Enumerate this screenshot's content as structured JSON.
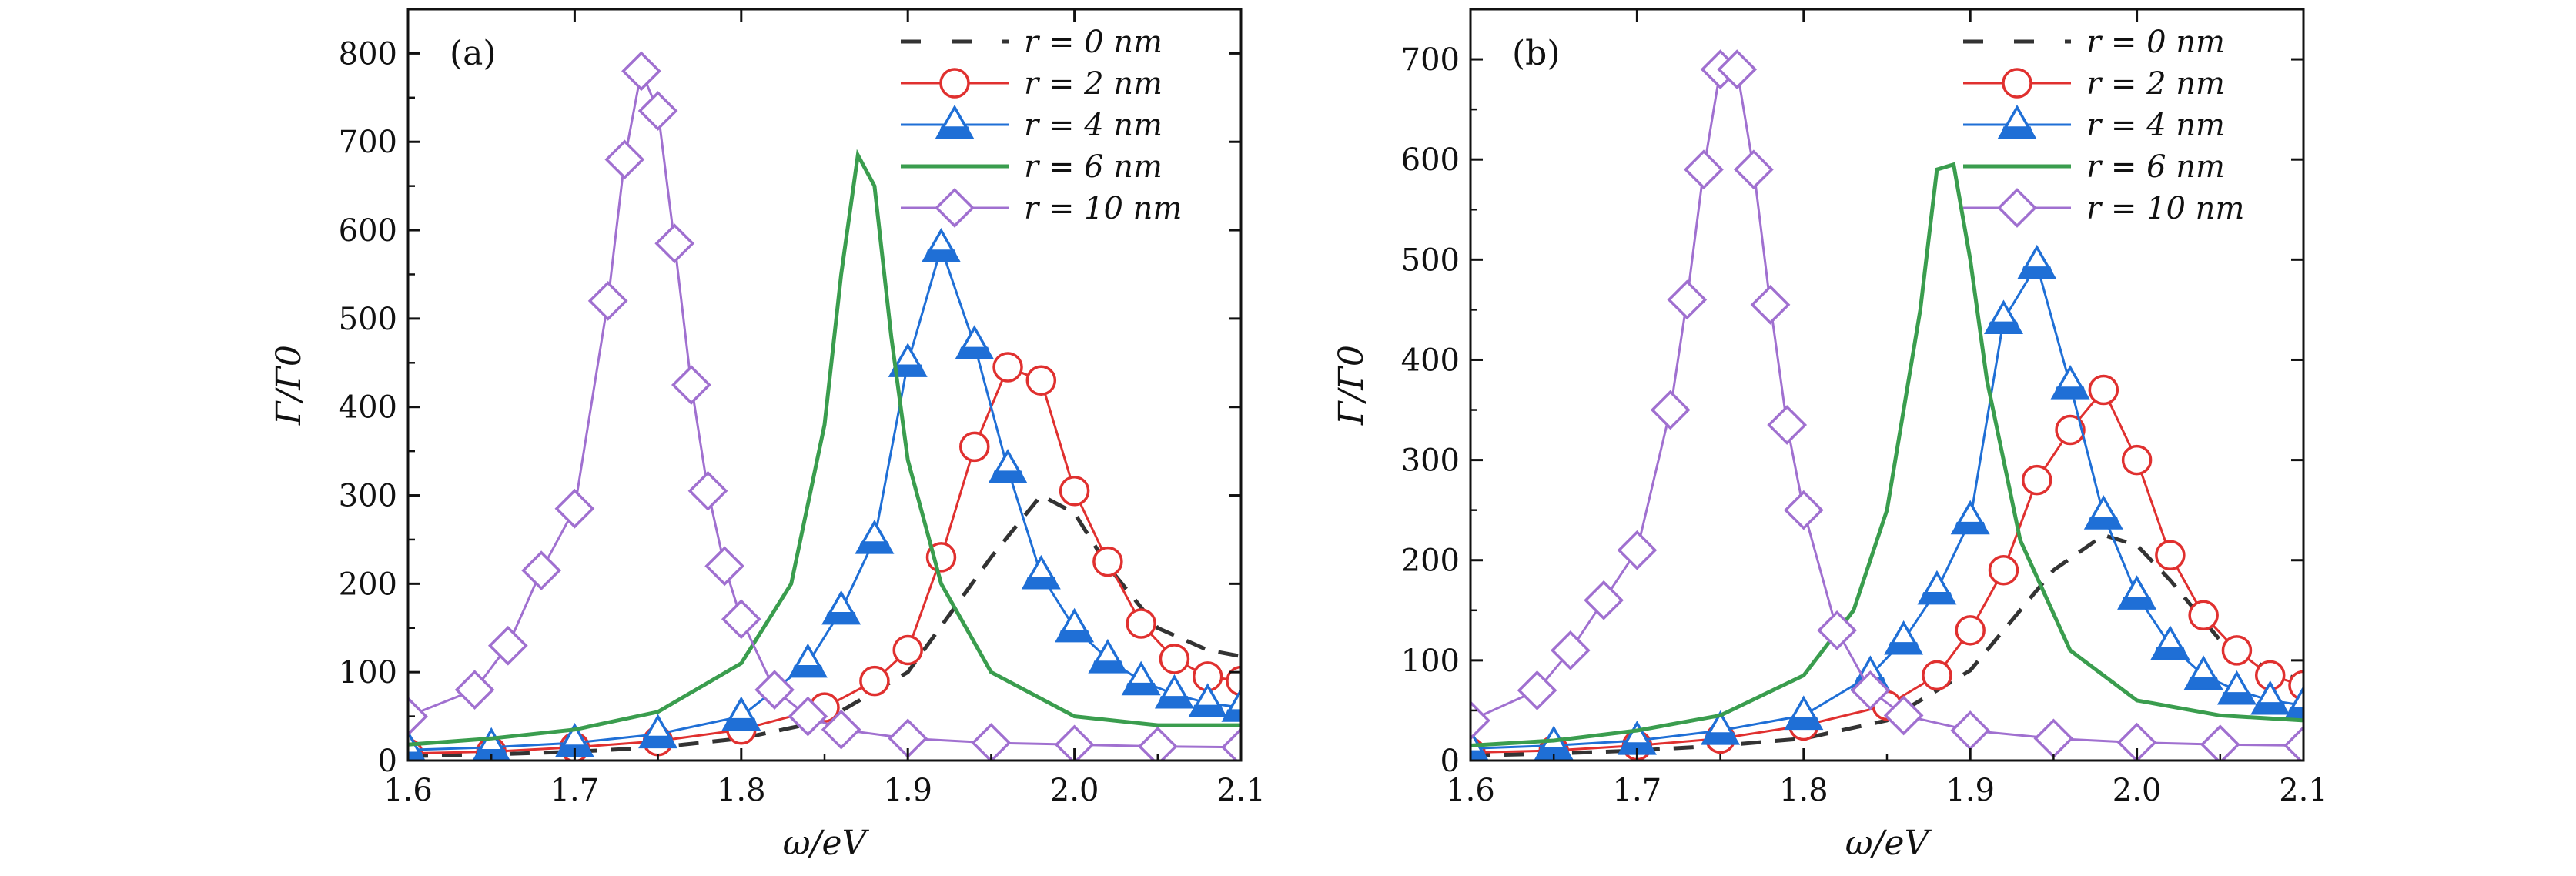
{
  "chart_data": [
    {
      "type": "line",
      "panel_label": "(a)",
      "xlabel": "ω/eV",
      "ylabel": "Γ/Γ0",
      "xlim": [
        1.6,
        2.1
      ],
      "ylim": [
        0,
        850
      ],
      "x_ticks": [
        "1.6",
        "1.7",
        "1.8",
        "1.9",
        "2.0",
        "2.1"
      ],
      "y_ticks": [
        "0",
        "100",
        "200",
        "300",
        "400",
        "500",
        "600",
        "700",
        "800"
      ],
      "grid": false,
      "legend_position": "top-right",
      "series": [
        {
          "name": "r = 0 nm",
          "marker": "none",
          "dash": "dashed",
          "color": "#333333",
          "x": [
            1.6,
            1.65,
            1.7,
            1.75,
            1.8,
            1.85,
            1.9,
            1.95,
            1.98,
            2.0,
            2.02,
            2.05,
            2.08,
            2.1
          ],
          "y": [
            5,
            7,
            10,
            15,
            25,
            45,
            100,
            230,
            300,
            280,
            220,
            150,
            125,
            118
          ]
        },
        {
          "name": "r = 2 nm",
          "marker": "circle",
          "dash": "solid",
          "color": "#e0302f",
          "x": [
            1.6,
            1.65,
            1.7,
            1.75,
            1.8,
            1.85,
            1.88,
            1.9,
            1.92,
            1.94,
            1.96,
            1.98,
            2.0,
            2.02,
            2.04,
            2.06,
            2.08,
            2.1
          ],
          "y": [
            8,
            10,
            15,
            22,
            35,
            60,
            90,
            125,
            230,
            355,
            445,
            430,
            305,
            225,
            155,
            115,
            95,
            90
          ]
        },
        {
          "name": "r = 4 nm",
          "marker": "triangle",
          "dash": "solid",
          "color": "#1f6fd6",
          "x": [
            1.6,
            1.65,
            1.7,
            1.75,
            1.8,
            1.84,
            1.86,
            1.88,
            1.9,
            1.92,
            1.94,
            1.96,
            1.98,
            2.0,
            2.02,
            2.04,
            2.06,
            2.08,
            2.1
          ],
          "y": [
            12,
            15,
            20,
            30,
            50,
            110,
            170,
            250,
            450,
            580,
            470,
            330,
            210,
            150,
            115,
            90,
            75,
            65,
            60
          ]
        },
        {
          "name": "r = 6 nm",
          "marker": "none",
          "dash": "solid",
          "color": "#3a9d4e",
          "x": [
            1.6,
            1.65,
            1.7,
            1.75,
            1.8,
            1.83,
            1.85,
            1.86,
            1.87,
            1.88,
            1.89,
            1.9,
            1.92,
            1.95,
            2.0,
            2.05,
            2.1
          ],
          "y": [
            18,
            25,
            35,
            55,
            110,
            200,
            380,
            550,
            685,
            650,
            480,
            340,
            200,
            100,
            50,
            40,
            40
          ]
        },
        {
          "name": "r = 10 nm",
          "marker": "diamond",
          "dash": "solid",
          "color": "#a070d0",
          "x": [
            1.6,
            1.64,
            1.66,
            1.68,
            1.7,
            1.72,
            1.73,
            1.74,
            1.75,
            1.76,
            1.77,
            1.78,
            1.79,
            1.8,
            1.82,
            1.84,
            1.86,
            1.9,
            1.95,
            2.0,
            2.05,
            2.1
          ],
          "y": [
            50,
            80,
            130,
            215,
            285,
            520,
            680,
            780,
            735,
            585,
            425,
            305,
            220,
            160,
            80,
            50,
            35,
            25,
            20,
            18,
            16,
            15
          ]
        }
      ]
    },
    {
      "type": "line",
      "panel_label": "(b)",
      "xlabel": "ω/eV",
      "ylabel": "Γ/Γ0",
      "xlim": [
        1.6,
        2.1
      ],
      "ylim": [
        0,
        750
      ],
      "x_ticks": [
        "1.6",
        "1.7",
        "1.8",
        "1.9",
        "2.0",
        "2.1"
      ],
      "y_ticks": [
        "0",
        "100",
        "200",
        "300",
        "400",
        "500",
        "600",
        "700"
      ],
      "grid": false,
      "legend_position": "top-right",
      "series": [
        {
          "name": "r = 0 nm",
          "marker": "none",
          "dash": "dashed",
          "color": "#333333",
          "x": [
            1.6,
            1.65,
            1.7,
            1.75,
            1.8,
            1.85,
            1.9,
            1.95,
            1.98,
            2.0,
            2.02,
            2.05,
            2.08,
            2.1
          ],
          "y": [
            5,
            7,
            10,
            15,
            22,
            40,
            90,
            190,
            225,
            215,
            180,
            120,
            90,
            80
          ]
        },
        {
          "name": "r = 2 nm",
          "marker": "circle",
          "dash": "solid",
          "color": "#e0302f",
          "x": [
            1.6,
            1.65,
            1.7,
            1.75,
            1.8,
            1.85,
            1.88,
            1.9,
            1.92,
            1.94,
            1.96,
            1.98,
            2.0,
            2.02,
            2.04,
            2.06,
            2.08,
            2.1
          ],
          "y": [
            8,
            10,
            15,
            22,
            35,
            55,
            85,
            130,
            190,
            280,
            330,
            370,
            300,
            205,
            145,
            110,
            85,
            75
          ]
        },
        {
          "name": "r = 4 nm",
          "marker": "triangle",
          "dash": "solid",
          "color": "#1f6fd6",
          "x": [
            1.6,
            1.65,
            1.7,
            1.75,
            1.8,
            1.84,
            1.86,
            1.88,
            1.9,
            1.92,
            1.94,
            1.96,
            1.98,
            2.0,
            2.02,
            2.04,
            2.06,
            2.08,
            2.1
          ],
          "y": [
            12,
            15,
            20,
            30,
            45,
            85,
            120,
            170,
            240,
            440,
            495,
            375,
            245,
            165,
            115,
            85,
            70,
            60,
            55
          ]
        },
        {
          "name": "r = 6 nm",
          "marker": "none",
          "dash": "solid",
          "color": "#3a9d4e",
          "x": [
            1.6,
            1.65,
            1.7,
            1.75,
            1.8,
            1.83,
            1.85,
            1.87,
            1.88,
            1.89,
            1.9,
            1.91,
            1.93,
            1.96,
            2.0,
            2.05,
            2.1
          ],
          "y": [
            15,
            20,
            30,
            45,
            85,
            150,
            250,
            450,
            590,
            595,
            500,
            380,
            220,
            110,
            60,
            45,
            40
          ]
        },
        {
          "name": "r = 10 nm",
          "marker": "diamond",
          "dash": "solid",
          "color": "#a070d0",
          "x": [
            1.6,
            1.64,
            1.66,
            1.68,
            1.7,
            1.72,
            1.73,
            1.74,
            1.75,
            1.76,
            1.77,
            1.78,
            1.79,
            1.8,
            1.82,
            1.84,
            1.86,
            1.9,
            1.95,
            2.0,
            2.05,
            2.1
          ],
          "y": [
            40,
            70,
            110,
            160,
            210,
            350,
            460,
            590,
            690,
            690,
            590,
            455,
            335,
            250,
            130,
            70,
            45,
            30,
            22,
            18,
            16,
            15
          ]
        }
      ]
    }
  ]
}
